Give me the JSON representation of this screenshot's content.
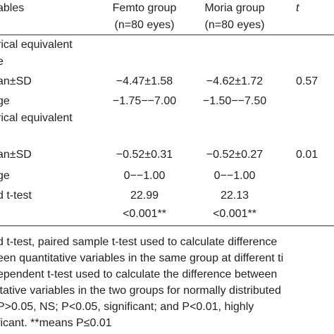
{
  "table": {
    "header": [
      [
        "ables"
      ],
      [
        "Femto group",
        "(n=80 eyes)"
      ],
      [
        "Moria group",
        "(n=80 eyes)"
      ],
      [
        "t"
      ]
    ],
    "rows": [
      [
        "rical equivalent",
        null,
        null,
        null
      ],
      [
        "e",
        null,
        null,
        null
      ],
      [
        "an±SD",
        "−4.47±1.58",
        "−4.62±1.72",
        "0.57"
      ],
      [
        "ge",
        "−1.75−−7.00",
        "−1.50−−7.50",
        null
      ],
      [
        "rical equivalent",
        null,
        null,
        null
      ],
      [
        null,
        null,
        null,
        null
      ],
      [
        "an±SD",
        "−0.52±0.31",
        "−0.52±0.27",
        "0.01"
      ],
      [
        "ge",
        "0−−1.00",
        "0−−1.00",
        null
      ],
      [
        "d t-test",
        "22.99",
        "22.13",
        null
      ],
      [
        null,
        "<0.001**",
        "<0.001**",
        null
      ]
    ]
  },
  "footnotes": [
    "d t-test, paired sample t-test used to calculate difference",
    "een quantitative variables in the same group at different ti",
    "ependent t-test used to calculate the difference between",
    "itative variables in the two groups for normally distributed",
    "P>0.05, NS; P<0.05, significant; and P<0.01, highly",
    "ficant. **means P≤0.01"
  ]
}
